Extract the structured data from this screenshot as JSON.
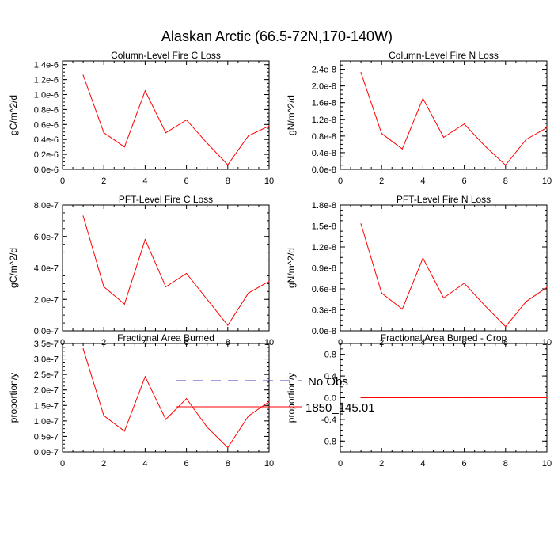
{
  "title": "Alaskan Arctic (66.5-72N,170-140W)",
  "colors": {
    "series": "#ff0000",
    "obs": "#3b3bb8",
    "axis": "#000000"
  },
  "legend": [
    {
      "label": "No Obs",
      "style": "dashed",
      "color": "#3b3bb8"
    },
    {
      "label": "1850_145.01",
      "style": "solid",
      "color": "#ff0000"
    }
  ],
  "chart_data": [
    {
      "type": "line",
      "title": "Column-Level Fire C Loss",
      "ylabel": "gC/m^2/d",
      "xlim": [
        0,
        10
      ],
      "x_ticks": [
        "0",
        "2",
        "4",
        "6",
        "8",
        "10"
      ],
      "ylim": [
        0,
        1.45e-06
      ],
      "y_tick_values": [
        0,
        2e-07,
        4e-07,
        6e-07,
        8e-07,
        1e-06,
        1.2e-06,
        1.4e-06
      ],
      "y_ticks": [
        "0.0e-6",
        "0.2e-6",
        "0.4e-6",
        "0.6e-6",
        "0.8e-6",
        "1.0e-6",
        "1.2e-6",
        "1.4e-6"
      ],
      "series": [
        {
          "name": "1850_145.01",
          "x": [
            1,
            2,
            3,
            4,
            5,
            6,
            7,
            8,
            9,
            10
          ],
          "values": [
            1.26e-06,
            4.9e-07,
            3e-07,
            1.05e-06,
            4.9e-07,
            6.6e-07,
            3.5e-07,
            6e-08,
            4.5e-07,
            5.8e-07
          ]
        }
      ]
    },
    {
      "type": "line",
      "title": "Column-Level Fire N Loss",
      "ylabel": "gN/m^2/d",
      "xlim": [
        0,
        10
      ],
      "x_ticks": [
        "0",
        "2",
        "4",
        "6",
        "8",
        "10"
      ],
      "ylim": [
        0,
        2.6e-08
      ],
      "y_tick_values": [
        0,
        4e-09,
        8e-09,
        1.2e-08,
        1.6e-08,
        2e-08,
        2.4e-08
      ],
      "y_ticks": [
        "0.0e-8",
        "0.4e-8",
        "0.8e-8",
        "1.2e-8",
        "1.6e-8",
        "2.0e-8",
        "2.4e-8"
      ],
      "series": [
        {
          "name": "1850_145.01",
          "x": [
            1,
            2,
            3,
            4,
            5,
            6,
            7,
            8,
            9,
            10
          ],
          "values": [
            2.32e-08,
            8.6e-09,
            4.9e-09,
            1.7e-08,
            7.7e-09,
            1.09e-08,
            5.6e-09,
            1e-09,
            7.2e-09,
            1e-08
          ]
        }
      ]
    },
    {
      "type": "line",
      "title": "PFT-Level Fire C Loss",
      "ylabel": "gC/m^2/d",
      "xlim": [
        0,
        10
      ],
      "x_ticks": [
        "0",
        "2",
        "4",
        "6",
        "8",
        "10"
      ],
      "ylim": [
        0,
        8e-07
      ],
      "y_tick_values": [
        0,
        2e-07,
        4e-07,
        6e-07,
        8e-07
      ],
      "y_ticks": [
        "0.0e-7",
        "2.0e-7",
        "4.0e-7",
        "6.0e-7",
        "8.0e-7"
      ],
      "series": [
        {
          "name": "1850_145.01",
          "x": [
            1,
            2,
            3,
            4,
            5,
            6,
            7,
            8,
            9,
            10
          ],
          "values": [
            7.3e-07,
            2.8e-07,
            1.7e-07,
            5.8e-07,
            2.8e-07,
            3.65e-07,
            2e-07,
            3.5e-08,
            2.4e-07,
            3.15e-07
          ]
        }
      ]
    },
    {
      "type": "line",
      "title": "PFT-Level Fire N Loss",
      "ylabel": "gN/m^2/d",
      "xlim": [
        0,
        10
      ],
      "x_ticks": [
        "0",
        "2",
        "4",
        "6",
        "8",
        "10"
      ],
      "ylim": [
        0,
        1.8e-08
      ],
      "y_tick_values": [
        0,
        3e-09,
        6e-09,
        9e-09,
        1.2e-08,
        1.5e-08,
        1.8e-08
      ],
      "y_ticks": [
        "0.0e-8",
        "0.3e-8",
        "0.6e-8",
        "0.9e-8",
        "1.2e-8",
        "1.5e-8",
        "1.8e-8"
      ],
      "series": [
        {
          "name": "1850_145.01",
          "x": [
            1,
            2,
            3,
            4,
            5,
            6,
            7,
            8,
            9,
            10
          ],
          "values": [
            1.53e-08,
            5.4e-09,
            3.1e-09,
            1.04e-08,
            4.7e-09,
            6.8e-09,
            3.6e-09,
            6e-10,
            4.2e-09,
            6.2e-09
          ]
        }
      ]
    },
    {
      "type": "line",
      "title": "Fractional Area Burned",
      "ylabel": "proportion/y",
      "xlim": [
        0,
        10
      ],
      "x_ticks": [
        "0",
        "2",
        "4",
        "6",
        "8",
        "10"
      ],
      "ylim": [
        0,
        3.5e-07
      ],
      "y_tick_values": [
        0,
        5e-08,
        1e-07,
        1.5e-07,
        2e-07,
        2.5e-07,
        3e-07,
        3.5e-07
      ],
      "y_ticks": [
        "0.0e-7",
        "0.5e-7",
        "1.0e-7",
        "1.5e-7",
        "2.0e-7",
        "2.5e-7",
        "3.0e-7",
        "3.5e-7"
      ],
      "series": [
        {
          "name": "1850_145.01",
          "x": [
            1,
            2,
            3,
            4,
            5,
            6,
            7,
            8,
            9,
            10
          ],
          "values": [
            3.33e-07,
            1.17e-07,
            6.7e-08,
            2.43e-07,
            1.05e-07,
            1.72e-07,
            8e-08,
            1.4e-08,
            1.16e-07,
            1.62e-07
          ]
        }
      ]
    },
    {
      "type": "line",
      "title": "Fractional Area Burned - Crop",
      "ylabel": "proportion/y",
      "xlim": [
        0,
        10
      ],
      "x_ticks": [
        "0",
        "2",
        "4",
        "6",
        "8",
        "10"
      ],
      "ylim": [
        -1,
        1
      ],
      "y_tick_values": [
        -0.8,
        -0.4,
        0,
        0.4,
        0.8
      ],
      "y_ticks": [
        "-0.8",
        "-0.4",
        "0.0",
        "0.4",
        "0.8"
      ],
      "series": [
        {
          "name": "1850_145.01",
          "x": [
            1,
            2,
            3,
            4,
            5,
            6,
            7,
            8,
            9,
            10
          ],
          "values": [
            0,
            0,
            0,
            0,
            0,
            0,
            0,
            0,
            0,
            0
          ]
        }
      ]
    }
  ]
}
